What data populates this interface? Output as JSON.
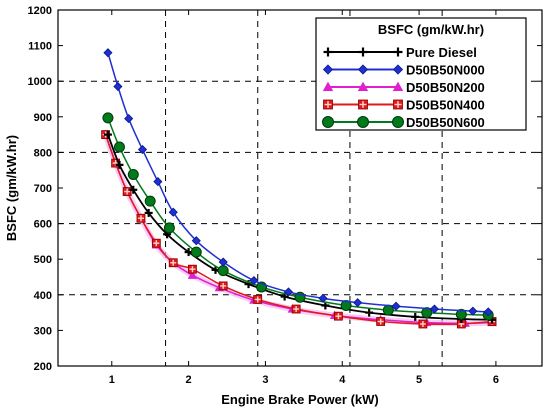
{
  "chart_data": {
    "type": "line",
    "title": "",
    "xlabel": "Engine Brake Power (kW)",
    "ylabel": "BSFC (gm/kW.hr)",
    "xlim": [
      0.3,
      6.6
    ],
    "ylim": [
      200,
      1200
    ],
    "xticks": [
      1,
      2,
      3,
      4,
      5,
      6
    ],
    "yticks": [
      200,
      300,
      400,
      500,
      600,
      700,
      800,
      900,
      1000,
      1100,
      1200
    ],
    "grid": "dashed",
    "grid_x": [
      1.7,
      2.9,
      4.1,
      5.3
    ],
    "grid_y": [
      400,
      600,
      800,
      1000
    ],
    "legend": {
      "position": "top-right",
      "title": "BSFC (gm/kW.hr)"
    },
    "series": [
      {
        "name": "Pure Diesel",
        "color": "#000000",
        "marker": "plus",
        "x": [
          0.95,
          1.1,
          1.28,
          1.48,
          1.72,
          2.0,
          2.35,
          2.78,
          3.25,
          3.78,
          4.35,
          4.95,
          5.55,
          5.95
        ],
        "y": [
          850,
          765,
          695,
          630,
          570,
          520,
          470,
          430,
          395,
          370,
          350,
          338,
          332,
          330
        ]
      },
      {
        "name": "D50B50N000",
        "color": "#1f2fd0",
        "marker": "diamond",
        "x": [
          0.95,
          1.08,
          1.22,
          1.4,
          1.6,
          1.8,
          2.1,
          2.45,
          2.85,
          3.3,
          3.75,
          4.2,
          4.7,
          5.2,
          5.7,
          5.9
        ],
        "y": [
          1080,
          985,
          895,
          808,
          718,
          632,
          552,
          492,
          440,
          408,
          390,
          378,
          368,
          360,
          354,
          352
        ]
      },
      {
        "name": "D50B50N200",
        "color": "#e020d0",
        "marker": "triangle",
        "x": [
          0.92,
          1.05,
          1.2,
          1.38,
          1.58,
          1.8,
          2.05,
          2.4,
          2.85,
          3.35,
          3.9,
          4.5,
          5.1,
          5.6,
          5.95
        ],
        "y": [
          850,
          770,
          690,
          615,
          540,
          490,
          455,
          420,
          385,
          360,
          342,
          330,
          322,
          320,
          322
        ]
      },
      {
        "name": "D50B50N400",
        "color": "#e01a1a",
        "marker": "square-cross",
        "x": [
          0.92,
          1.05,
          1.2,
          1.38,
          1.58,
          1.8,
          2.05,
          2.45,
          2.9,
          3.4,
          3.95,
          4.5,
          5.05,
          5.55,
          5.95
        ],
        "y": [
          850,
          770,
          690,
          615,
          545,
          490,
          472,
          425,
          387,
          360,
          340,
          325,
          318,
          318,
          325
        ]
      },
      {
        "name": "D50B50N600",
        "color": "#007a1a",
        "marker": "circle",
        "x": [
          0.95,
          1.1,
          1.28,
          1.5,
          1.75,
          2.1,
          2.45,
          2.95,
          3.45,
          4.05,
          4.6,
          5.1,
          5.55,
          5.9
        ],
        "y": [
          897,
          815,
          738,
          663,
          588,
          520,
          468,
          422,
          393,
          370,
          357,
          350,
          345,
          343
        ]
      }
    ]
  }
}
